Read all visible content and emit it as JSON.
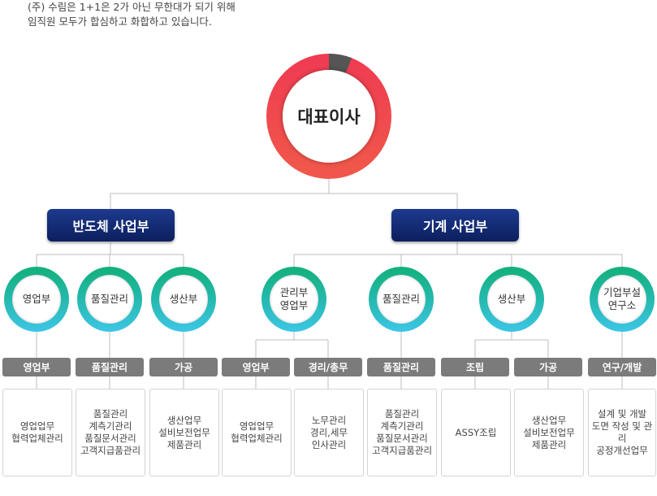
{
  "intro": {
    "line1": "(주) 수림은 1+1은 2가 아닌 무한대가 되기 위해",
    "line2": "임직원 모두가 합심하고 화합하고 있습니다."
  },
  "ceo": "대표이사",
  "divisions": {
    "semiconductor": "반도체 사업부",
    "machinery": "기계 사업부"
  },
  "departments": [
    {
      "name": "영업부",
      "tags": [
        "영업부"
      ],
      "tasks": [
        "영업업무\n협력업체관리"
      ]
    },
    {
      "name": "품질관리",
      "tags": [
        "품질관리"
      ],
      "tasks": [
        "품질관리\n계측기관리\n품질문서관리\n고객지급품관리"
      ]
    },
    {
      "name": "생산부",
      "tags": [
        "가공"
      ],
      "tasks": [
        "생산업무\n설비보전업무\n제품관리"
      ]
    },
    {
      "name": "관리부\n영업부",
      "tags": [
        "영업부",
        "경리/총무"
      ],
      "tasks": [
        "영업업무\n협력업체관리",
        "노무관리\n경리,세무\n인사관리"
      ]
    },
    {
      "name": "품질관리",
      "tags": [
        "품질관리"
      ],
      "tasks": [
        "품질관리\n계측기관리\n품질문서관리\n고객지급품관리"
      ]
    },
    {
      "name": "생산부",
      "tags": [
        "조립",
        "가공"
      ],
      "tasks": [
        "ASSY조립",
        "생산업무\n설비보전업무\n제품관리"
      ]
    },
    {
      "name": "기업부설\n연구소",
      "tags": [
        "연구/개발"
      ],
      "tasks": [
        "설계 및 개발\n도면 작성 및 관리\n공정개선업무"
      ]
    }
  ],
  "colors": {
    "division_bg": "#102a72",
    "ring_top": "#12b07a",
    "ring_bottom": "#3cc6e6",
    "ceo_ring": "#e8414f",
    "tag_bg": "#7b7b7b"
  }
}
